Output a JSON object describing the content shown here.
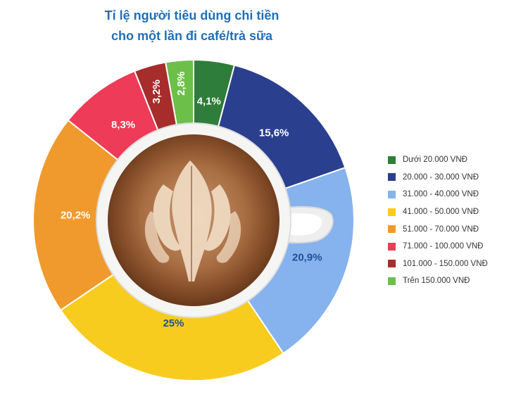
{
  "title_lines": [
    "Tỉ lệ người tiêu dùng chi tiền",
    "cho một lần đi café/trà sữa"
  ],
  "chart_data": {
    "type": "pie",
    "title": "Tỉ lệ người tiêu dùng chi tiền cho một lần đi café/trà sữa",
    "legend_position": "right",
    "series": [
      {
        "name": "Dưới 20.000 VNĐ",
        "value": 4.1,
        "label": "4,1%",
        "color": "#2e7d3a"
      },
      {
        "name": "20.000 - 30.000 VNĐ",
        "value": 15.6,
        "label": "15,6%",
        "color": "#2b3f8f"
      },
      {
        "name": "31.000 - 40.000 VNĐ",
        "value": 20.9,
        "label": "20,9%",
        "color": "#86b3ee"
      },
      {
        "name": "41.000 - 50.000 VNĐ",
        "value": 25,
        "label": "25%",
        "color": "#f8cc1e"
      },
      {
        "name": "51.000 - 70.000 VNĐ",
        "value": 20.2,
        "label": "20,2%",
        "color": "#f09a2e"
      },
      {
        "name": "71.000 - 100.000 VNĐ",
        "value": 8.3,
        "label": "8,3%",
        "color": "#ee3b57"
      },
      {
        "name": "101.000 - 150.000 VNĐ",
        "value": 3.2,
        "label": "3,2%",
        "color": "#a72c2c"
      },
      {
        "name": "Trên 150.000 VNĐ",
        "value": 2.8,
        "label": "2,8%",
        "color": "#6cc04a"
      }
    ]
  }
}
